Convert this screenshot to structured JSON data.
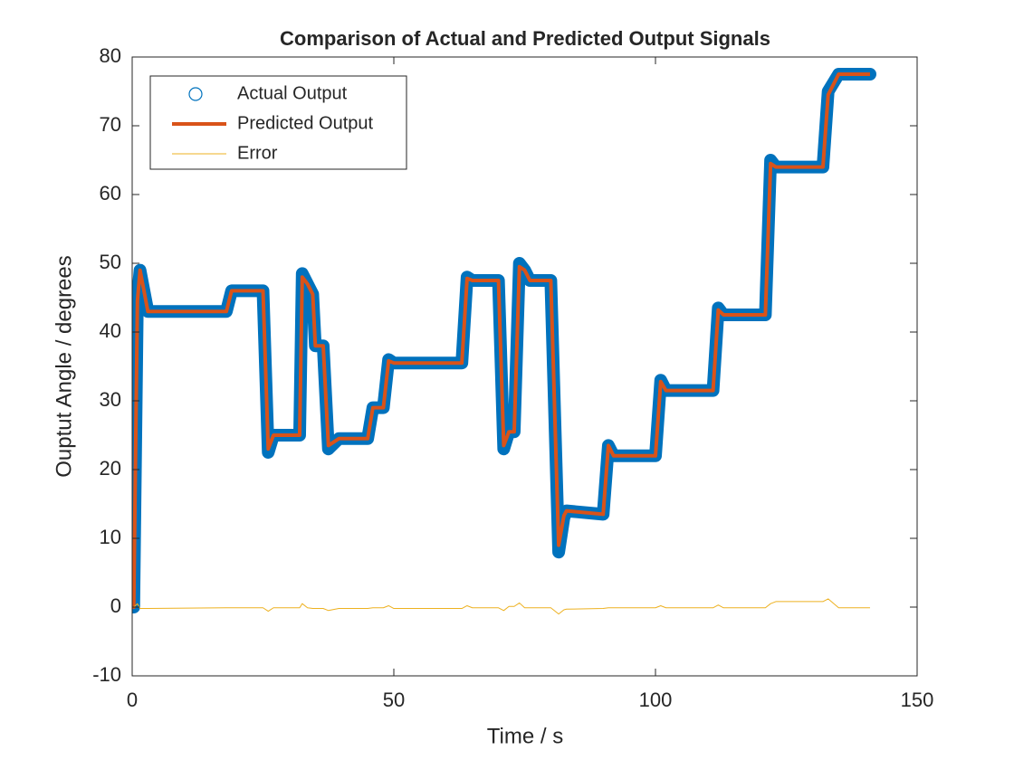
{
  "chart_data": {
    "type": "line",
    "title": "Comparison of Actual and Predicted Output Signals",
    "x_label": "Time / s",
    "y_label": "Ouptut Angle / degrees",
    "x": [
      0,
      0.3,
      1,
      1.5,
      2,
      3,
      18,
      19,
      25,
      26,
      27,
      32,
      32.5,
      33.5,
      34.5,
      35,
      36.5,
      37.5,
      39.5,
      45,
      46,
      48,
      49,
      50,
      63,
      64,
      65,
      70,
      71,
      72,
      73,
      74,
      75,
      76,
      80,
      81.5,
      82.5,
      83,
      90,
      91,
      92,
      100,
      101,
      102,
      111,
      112,
      113,
      121,
      122,
      123,
      132,
      133,
      135,
      141
    ],
    "series": [
      {
        "name": "Actual Output",
        "color": "#0072bd",
        "marker": "o",
        "line": false,
        "values": [
          0,
          0,
          45,
          49,
          47,
          43,
          43,
          46,
          46,
          22.5,
          25,
          25,
          48.5,
          47,
          45.5,
          38,
          38,
          23,
          24.5,
          24.5,
          29,
          29,
          36,
          35.5,
          35.5,
          48,
          47.5,
          47.5,
          23,
          25.5,
          25.5,
          50,
          49,
          47.5,
          47.5,
          8,
          13,
          14,
          13.5,
          23.5,
          22,
          22,
          33,
          31.5,
          31.5,
          43.5,
          42.5,
          42.5,
          65,
          64,
          64,
          75,
          77.5,
          77.5
        ]
      },
      {
        "name": "Predicted Output",
        "color": "#d95319",
        "marker": null,
        "line": true,
        "line_width": 4,
        "values": [
          0,
          0,
          44.5,
          49,
          47,
          43,
          43,
          46,
          46,
          23,
          25,
          25,
          48,
          47,
          45.5,
          38,
          38,
          23.5,
          24.5,
          24.5,
          29,
          29,
          35.8,
          35.5,
          35.5,
          47.8,
          47.5,
          47.5,
          23.5,
          25.5,
          25.5,
          49.5,
          49,
          47.5,
          47.5,
          9,
          13.3,
          14,
          13.5,
          23.5,
          22,
          22,
          32.8,
          31.5,
          31.5,
          43.2,
          42.5,
          42.5,
          64.5,
          64,
          64,
          74.5,
          77.5,
          77.5
        ]
      },
      {
        "name": "Error",
        "color": "#edb120",
        "marker": null,
        "line": true,
        "line_width": 1,
        "values": [
          0,
          0,
          0.5,
          -0.2,
          -0.2,
          -0.2,
          -0.1,
          -0.1,
          -0.1,
          -0.6,
          -0.1,
          -0.1,
          0.5,
          -0.1,
          -0.2,
          -0.2,
          -0.2,
          -0.5,
          -0.2,
          -0.2,
          -0.1,
          -0.1,
          0.2,
          -0.2,
          -0.2,
          0.2,
          -0.1,
          -0.1,
          -0.5,
          0.1,
          0.1,
          0.6,
          -0.1,
          -0.1,
          -0.1,
          -1,
          -0.4,
          -0.3,
          -0.2,
          -0.1,
          -0.1,
          -0.1,
          0.2,
          -0.1,
          -0.1,
          0.3,
          -0.1,
          -0.1,
          0.5,
          0.8,
          0.8,
          1.2,
          -0.1,
          -0.1
        ]
      }
    ],
    "xlim": [
      0,
      150
    ],
    "xticks": [
      0,
      50,
      100,
      150
    ],
    "ylim": [
      -10,
      80
    ],
    "yticks": [
      -10,
      0,
      10,
      20,
      30,
      40,
      50,
      60,
      70,
      80
    ],
    "grid": false,
    "legend": "northwest"
  }
}
